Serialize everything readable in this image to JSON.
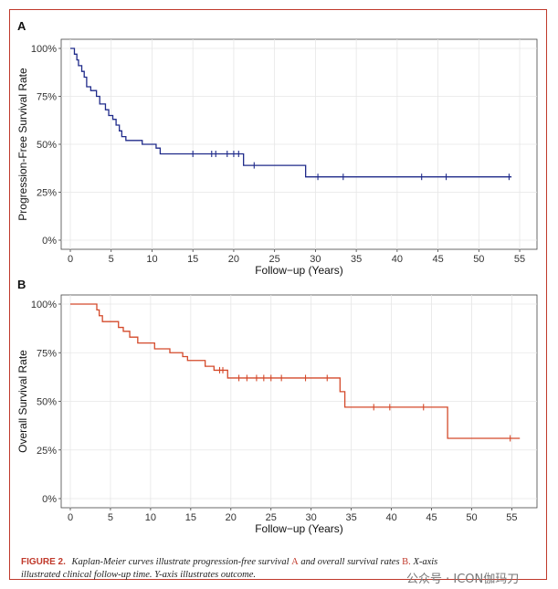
{
  "caption": {
    "figure_label": "FIGURE 2.",
    "text_1": "Kaplan-Meier curves illustrate progression-free survival",
    "ref_a": "A",
    "text_2": "and overall survival rates",
    "ref_b": "B.",
    "text_3": "X-axis illustrated clinical follow-up time. Y-axis illustrates outcome."
  },
  "watermark": "公众号 · ICON伽玛刀",
  "chart_data": [
    {
      "panel": "A",
      "type": "line",
      "step": true,
      "color": "#1f2a8a",
      "xlabel": "Follow−up (Years)",
      "ylabel": "Progression-Free Survival Rate",
      "xlim": [
        0,
        56
      ],
      "ylim": [
        0,
        1
      ],
      "xticks": [
        0,
        5,
        10,
        15,
        20,
        25,
        30,
        35,
        40,
        45,
        50,
        55
      ],
      "yticks": [
        0,
        0.25,
        0.5,
        0.75,
        1.0
      ],
      "ytick_labels": [
        "0%",
        "25%",
        "50%",
        "75%",
        "100%"
      ],
      "grid": true,
      "steps": [
        [
          0,
          1.0
        ],
        [
          0.5,
          0.97
        ],
        [
          0.8,
          0.94
        ],
        [
          1.0,
          0.91
        ],
        [
          1.4,
          0.88
        ],
        [
          1.7,
          0.85
        ],
        [
          2.0,
          0.8
        ],
        [
          2.5,
          0.78
        ],
        [
          3.2,
          0.75
        ],
        [
          3.6,
          0.71
        ],
        [
          4.3,
          0.68
        ],
        [
          4.7,
          0.65
        ],
        [
          5.2,
          0.63
        ],
        [
          5.6,
          0.6
        ],
        [
          6.0,
          0.57
        ],
        [
          6.3,
          0.54
        ],
        [
          6.8,
          0.52
        ],
        [
          8.8,
          0.5
        ],
        [
          10.5,
          0.48
        ],
        [
          11.0,
          0.45
        ],
        [
          21.2,
          0.39
        ],
        [
          28.8,
          0.33
        ],
        [
          54.0,
          0.33
        ]
      ],
      "censored": [
        [
          15,
          0.45
        ],
        [
          17.3,
          0.45
        ],
        [
          17.8,
          0.45
        ],
        [
          19.2,
          0.45
        ],
        [
          20.0,
          0.45
        ],
        [
          20.6,
          0.45
        ],
        [
          22.5,
          0.39
        ],
        [
          30.3,
          0.33
        ],
        [
          33.4,
          0.33
        ],
        [
          43.0,
          0.33
        ],
        [
          46.0,
          0.33
        ],
        [
          53.7,
          0.33
        ]
      ]
    },
    {
      "panel": "B",
      "type": "line",
      "step": true,
      "color": "#d4492a",
      "xlabel": "Follow−up (Years)",
      "ylabel": "Overall Survival Rate",
      "xlim": [
        0,
        57
      ],
      "ylim": [
        0,
        1
      ],
      "xticks": [
        0,
        5,
        10,
        15,
        20,
        25,
        30,
        35,
        40,
        45,
        50,
        55
      ],
      "yticks": [
        0,
        0.25,
        0.5,
        0.75,
        1.0
      ],
      "ytick_labels": [
        "0%",
        "25%",
        "50%",
        "75%",
        "100%"
      ],
      "grid": true,
      "steps": [
        [
          0,
          1.0
        ],
        [
          3.3,
          0.97
        ],
        [
          3.6,
          0.94
        ],
        [
          4.0,
          0.91
        ],
        [
          6.0,
          0.88
        ],
        [
          6.6,
          0.86
        ],
        [
          7.4,
          0.83
        ],
        [
          8.4,
          0.8
        ],
        [
          10.5,
          0.77
        ],
        [
          12.4,
          0.75
        ],
        [
          14.0,
          0.73
        ],
        [
          14.6,
          0.71
        ],
        [
          16.8,
          0.68
        ],
        [
          17.9,
          0.66
        ],
        [
          19.6,
          0.62
        ],
        [
          33.6,
          0.55
        ],
        [
          34.2,
          0.47
        ],
        [
          47.0,
          0.31
        ],
        [
          56.0,
          0.31
        ]
      ],
      "censored": [
        [
          18.6,
          0.66
        ],
        [
          19.0,
          0.66
        ],
        [
          21.0,
          0.62
        ],
        [
          22.0,
          0.62
        ],
        [
          23.2,
          0.62
        ],
        [
          24.1,
          0.62
        ],
        [
          25.0,
          0.62
        ],
        [
          26.3,
          0.62
        ],
        [
          29.3,
          0.62
        ],
        [
          32.0,
          0.62
        ],
        [
          37.8,
          0.47
        ],
        [
          39.8,
          0.47
        ],
        [
          44.0,
          0.47
        ],
        [
          54.8,
          0.31
        ]
      ]
    }
  ]
}
